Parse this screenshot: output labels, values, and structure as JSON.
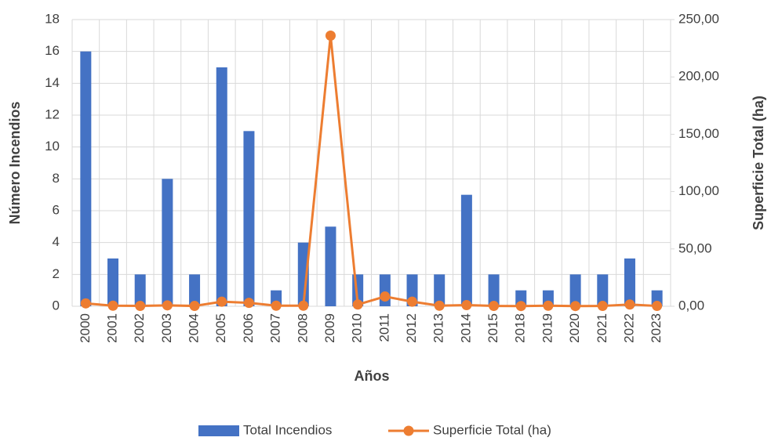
{
  "chart_data": {
    "type": "bar_line",
    "categories": [
      "2000",
      "2001",
      "2002",
      "2003",
      "2004",
      "2005",
      "2006",
      "2007",
      "2008",
      "2009",
      "2010",
      "2011",
      "2012",
      "2013",
      "2014",
      "2015",
      "2018",
      "2019",
      "2020",
      "2021",
      "2022",
      "2023"
    ],
    "series": [
      {
        "name": "Total Incendios",
        "type": "bar",
        "color": "#4472c4",
        "axis": "y",
        "values": [
          16,
          3,
          2,
          8,
          2,
          15,
          11,
          1,
          4,
          5,
          2,
          2,
          2,
          2,
          7,
          2,
          1,
          1,
          2,
          2,
          3,
          1
        ]
      },
      {
        "name": "Superficie Total (ha)",
        "type": "line",
        "color": "#ed7d31",
        "axis": "y2",
        "values": [
          2.5,
          0.5,
          0.3,
          0.8,
          0.3,
          4,
          3,
          0.5,
          0.5,
          236,
          1.5,
          8.5,
          4,
          0.5,
          1,
          0.3,
          0.2,
          0.5,
          0.2,
          0.3,
          1.5,
          0.3
        ]
      }
    ],
    "x_label": "Años",
    "y_label": "Número Incendios",
    "y2_label": "Superficie Total (ha)",
    "ylim": [
      0,
      18
    ],
    "yticks": [
      0,
      2,
      4,
      6,
      8,
      10,
      12,
      14,
      16,
      18
    ],
    "y2lim": [
      0,
      250
    ],
    "y2ticks": [
      {
        "value": 0,
        "label": "0,00"
      },
      {
        "value": 50,
        "label": "50,00"
      },
      {
        "value": 100,
        "label": "100,00"
      },
      {
        "value": 150,
        "label": "150,00"
      },
      {
        "value": 200,
        "label": "200,00"
      },
      {
        "value": 250,
        "label": "250,00"
      }
    ],
    "grid": true,
    "legend": "bottom"
  }
}
